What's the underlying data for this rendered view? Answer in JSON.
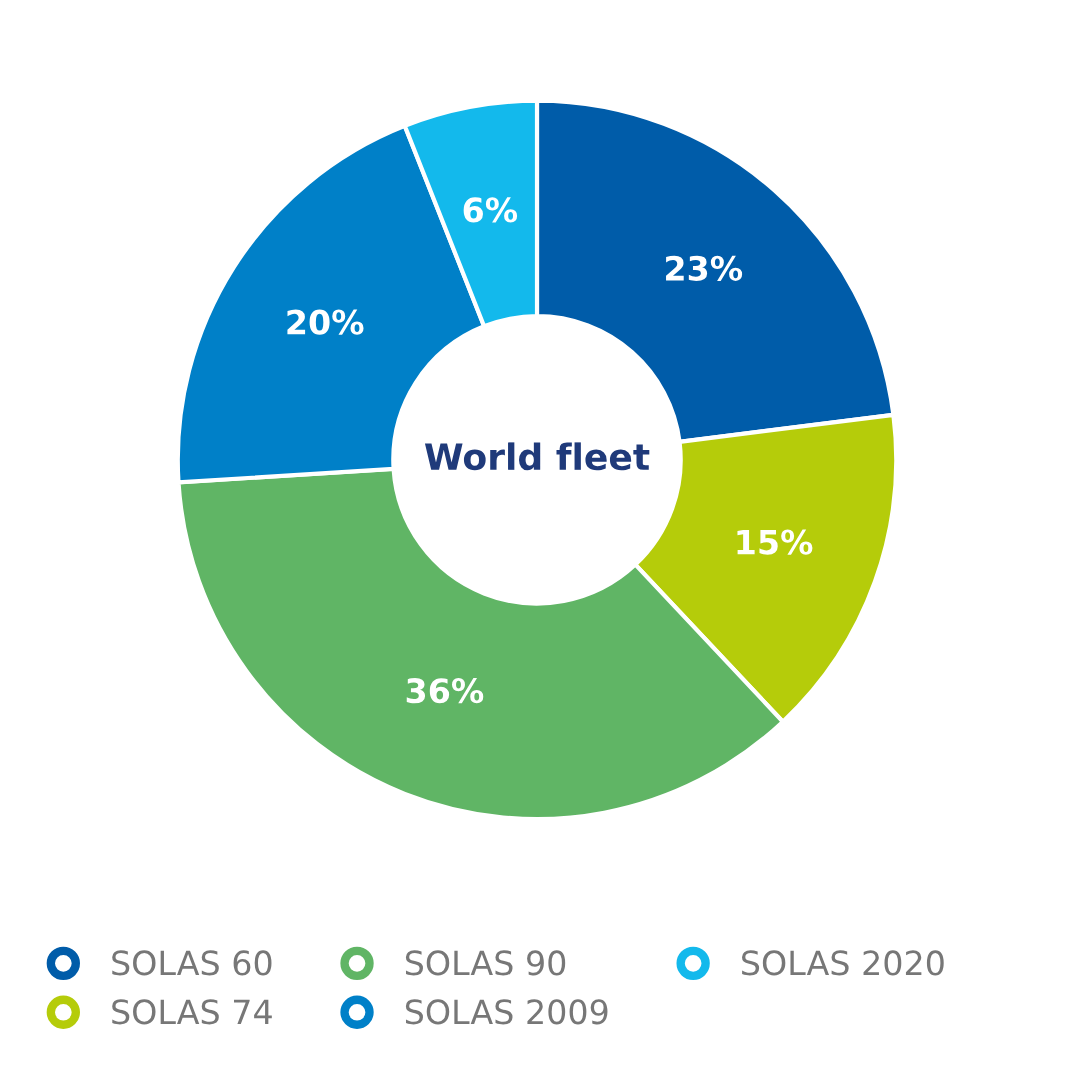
{
  "chart_data": {
    "type": "donut",
    "title": "World fleet",
    "categories": [
      "SOLAS 60",
      "SOLAS 74",
      "SOLAS 90",
      "SOLAS 2009",
      "SOLAS 2020"
    ],
    "values": [
      23,
      15,
      36,
      20,
      6
    ],
    "value_labels": [
      "23%",
      "15%",
      "36%",
      "20%",
      "6%"
    ],
    "colors": [
      "#005ca9",
      "#b5cc0a",
      "#60b565",
      "#0080c8",
      "#13b9ec"
    ],
    "legend": "bottom"
  }
}
